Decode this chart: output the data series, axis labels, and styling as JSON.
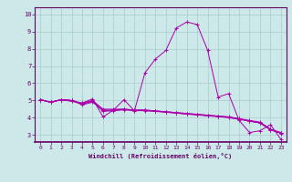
{
  "xlabel": "Windchill (Refroidissement éolien,°C)",
  "ylabel": "",
  "background_color": "#cce8e8",
  "grid_color": "#aacccc",
  "line_color": "#aa00aa",
  "xlim": [
    -0.5,
    23.5
  ],
  "ylim": [
    2.6,
    10.4
  ],
  "xticks": [
    0,
    1,
    2,
    3,
    4,
    5,
    6,
    7,
    8,
    9,
    10,
    11,
    12,
    13,
    14,
    15,
    16,
    17,
    18,
    19,
    20,
    21,
    22,
    23
  ],
  "yticks": [
    3,
    4,
    5,
    6,
    7,
    8,
    9,
    10
  ],
  "series": [
    [
      5.05,
      4.9,
      5.05,
      4.95,
      4.85,
      5.1,
      4.05,
      4.45,
      5.05,
      4.4,
      6.6,
      7.4,
      7.9,
      9.2,
      9.55,
      9.4,
      7.9,
      5.2,
      5.4,
      3.85,
      3.15,
      3.25,
      3.6,
      2.75
    ],
    [
      5.05,
      4.9,
      5.05,
      5.0,
      4.85,
      5.0,
      4.5,
      4.5,
      4.5,
      4.45,
      4.45,
      4.4,
      4.35,
      4.3,
      4.25,
      4.2,
      4.15,
      4.1,
      4.05,
      3.95,
      3.85,
      3.75,
      3.35,
      3.15
    ],
    [
      5.05,
      4.9,
      5.05,
      5.0,
      4.75,
      4.9,
      4.45,
      4.45,
      4.5,
      4.45,
      4.45,
      4.4,
      4.35,
      4.3,
      4.25,
      4.2,
      4.15,
      4.1,
      4.05,
      3.95,
      3.8,
      3.7,
      3.3,
      3.1
    ],
    [
      5.05,
      4.9,
      5.05,
      5.0,
      4.8,
      4.95,
      4.4,
      4.42,
      4.48,
      4.42,
      4.42,
      4.38,
      4.33,
      4.28,
      4.22,
      4.18,
      4.12,
      4.08,
      4.02,
      3.92,
      3.82,
      3.72,
      3.32,
      3.12
    ],
    [
      5.05,
      4.9,
      5.05,
      5.0,
      4.82,
      4.98,
      4.38,
      4.41,
      4.47,
      4.41,
      4.41,
      4.37,
      4.32,
      4.27,
      4.21,
      4.17,
      4.11,
      4.07,
      4.01,
      3.91,
      3.81,
      3.71,
      3.31,
      3.11
    ]
  ],
  "spine_color": "#660066",
  "tick_color": "#660066",
  "label_color": "#660066"
}
